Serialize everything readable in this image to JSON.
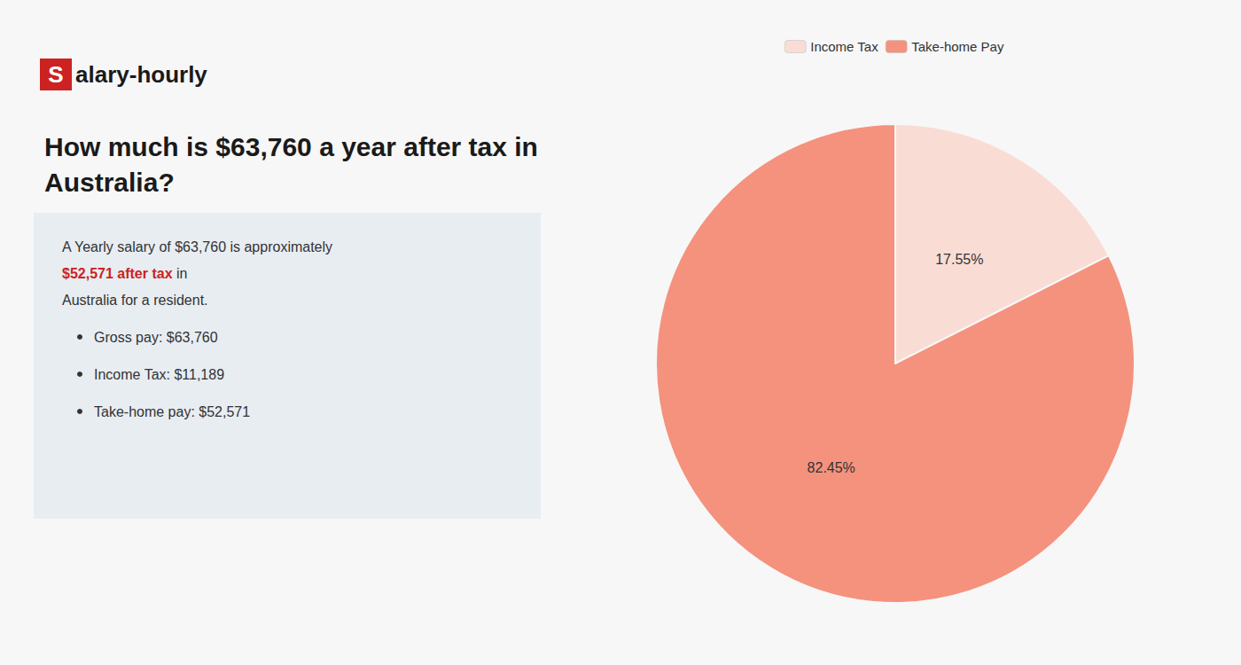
{
  "chart_data": {
    "type": "pie",
    "title": "How much is $63,760 a year after tax in\nAustralia?",
    "categories": [
      "Income Tax",
      "Take-home Pay"
    ],
    "values": [
      17.55,
      82.45
    ],
    "value_labels": [
      "17.55%",
      "82.45%"
    ],
    "colors": [
      "#f9ddd5",
      "#f4927e"
    ],
    "data_labels": true,
    "legend": "top",
    "annotations": [
      {
        "text": "S",
        "color": "#cc2222"
      },
      {
        "text": "alary-hourly"
      },
      {
        "text": "A Yearly salary of $63,760 is approximately "
      },
      {
        "text": "$52,571 after tax",
        "color": "#cc2222"
      },
      {
        "text": " in"
      },
      {
        "text": "Australia for a resident."
      },
      {
        "text": "Gross pay: $63,760"
      },
      {
        "text": "Income Tax: $11,189"
      },
      {
        "text": "Take-home pay: $52,571"
      }
    ]
  }
}
